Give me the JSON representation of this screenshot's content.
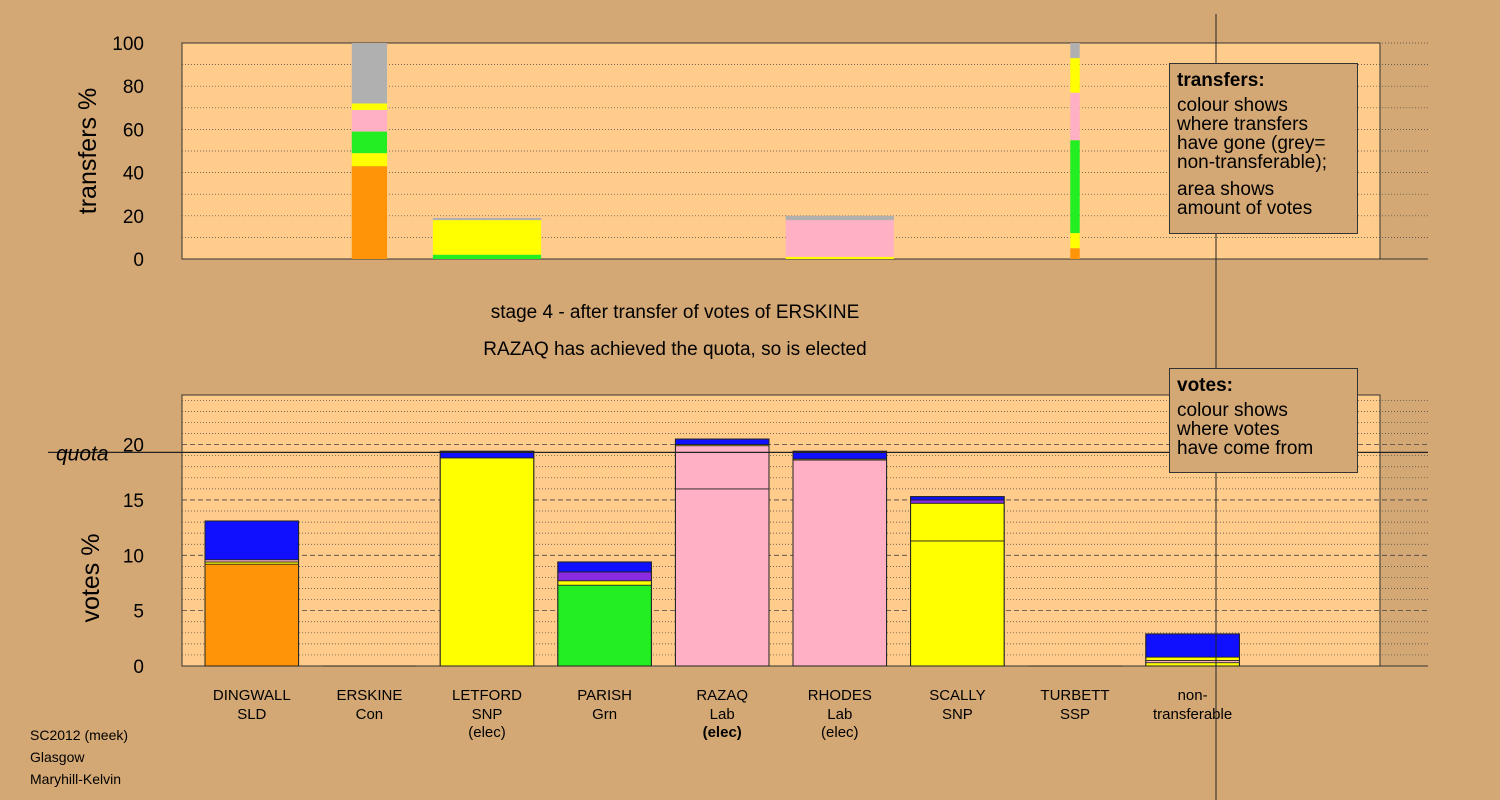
{
  "stage_title": "stage 4 - after transfer of votes of ERSKINE",
  "stage_subtitle": "RAZAQ has achieved the quota, so is elected",
  "footer": [
    "SC2012 (meek)",
    "Glasgow",
    "Maryhill-Kelvin"
  ],
  "transfers_box": {
    "title": "transfers:",
    "lines": [
      "colour shows",
      "where transfers",
      "have gone (grey=",
      "non-transferable);"
    ],
    "lines2": [
      "area shows",
      "amount of votes"
    ]
  },
  "votes_box": {
    "title": "votes:",
    "lines": [
      "colour shows",
      "where votes",
      "have come from"
    ]
  },
  "colors": {
    "SLD": "#ff9408",
    "Con": "#ffff00",
    "SNP": "#ffff00",
    "Grn": "#22ee22",
    "Lab": "#ffb0c4",
    "SSP": "#ff2020",
    "blue": "#1010ff",
    "purple": "#8a2be2",
    "grey": "#b0b0b0",
    "plot_bg": "#ffcc8c"
  },
  "chart_data": [
    {
      "type": "bar",
      "ylabel": "transfers %",
      "ylim": [
        0,
        100
      ],
      "yticks": [
        0,
        20,
        40,
        60,
        80,
        100
      ],
      "bars": [
        {
          "center": 1.5,
          "width": 0.3,
          "segments": [
            {
              "color": "SLD",
              "value": 43
            },
            {
              "color": "SNP",
              "value": 6
            },
            {
              "color": "Grn",
              "value": 10
            },
            {
              "color": "Lab",
              "value": 10
            },
            {
              "color": "SNP",
              "value": 3
            },
            {
              "color": "grey",
              "value": 28
            }
          ]
        },
        {
          "center": 2.5,
          "width": 0.92,
          "segments": [
            {
              "color": "Grn",
              "value": 2
            },
            {
              "color": "SNP",
              "value": 16
            },
            {
              "color": "grey",
              "value": 1
            }
          ]
        },
        {
          "center": 5.5,
          "width": 0.92,
          "segments": [
            {
              "color": "SNP",
              "value": 1
            },
            {
              "color": "Lab",
              "value": 17
            },
            {
              "color": "grey",
              "value": 2
            }
          ]
        },
        {
          "center": 7.5,
          "width": 0.08,
          "segments": [
            {
              "color": "SLD",
              "value": 5
            },
            {
              "color": "SNP",
              "value": 7
            },
            {
              "color": "Grn",
              "value": 43
            },
            {
              "color": "Lab",
              "value": 22
            },
            {
              "color": "SNP",
              "value": 16
            },
            {
              "color": "grey",
              "value": 7
            }
          ]
        }
      ]
    },
    {
      "type": "bar",
      "ylabel": "votes %",
      "ylim": [
        0,
        24.6
      ],
      "yticks": [
        0,
        5,
        10,
        15,
        20
      ],
      "quota": 19.3,
      "quota_label": "quota",
      "categories": [
        {
          "name": "DINGWALL",
          "party": "SLD",
          "status": ""
        },
        {
          "name": "ERSKINE",
          "party": "Con",
          "status": ""
        },
        {
          "name": "LETFORD",
          "party": "SNP",
          "status": "(elec)"
        },
        {
          "name": "PARISH",
          "party": "Grn",
          "status": ""
        },
        {
          "name": "RAZAQ",
          "party": "Lab",
          "status": "(elec)"
        },
        {
          "name": "RHODES",
          "party": "Lab",
          "status": "(elec)"
        },
        {
          "name": "SCALLY",
          "party": "SNP",
          "status": ""
        },
        {
          "name": "TURBETT",
          "party": "SSP",
          "status": ""
        },
        {
          "name": "non-",
          "party": "transferable",
          "status": ""
        }
      ],
      "bars": [
        {
          "segments": [
            {
              "color": "SLD",
              "value": 9.2
            },
            {
              "color": "SNP",
              "value": 0.2
            },
            {
              "color": "Lab",
              "value": 0.2
            },
            {
              "color": "blue",
              "value": 3.5
            }
          ]
        },
        {
          "segments": []
        },
        {
          "segments": [
            {
              "color": "SNP",
              "value": 18.8
            },
            {
              "color": "blue",
              "value": 0.6
            }
          ]
        },
        {
          "segments": [
            {
              "color": "Grn",
              "value": 7.3
            },
            {
              "color": "SNP",
              "value": 0.4
            },
            {
              "color": "purple",
              "value": 0.8
            },
            {
              "color": "blue",
              "value": 0.9
            }
          ]
        },
        {
          "segments": [
            {
              "color": "Lab",
              "value": 16.0
            },
            {
              "color": "Lab",
              "value": 3.9
            },
            {
              "color": "SNP",
              "value": 0.1
            },
            {
              "color": "blue",
              "value": 0.5
            }
          ]
        },
        {
          "segments": [
            {
              "color": "Lab",
              "value": 18.6
            },
            {
              "color": "SNP",
              "value": 0.1
            },
            {
              "color": "blue",
              "value": 0.7
            }
          ]
        },
        {
          "segments": [
            {
              "color": "SNP",
              "value": 11.3
            },
            {
              "color": "SNP",
              "value": 3.4
            },
            {
              "color": "purple",
              "value": 0.3
            },
            {
              "color": "blue",
              "value": 0.3
            }
          ]
        },
        {
          "segments": []
        },
        {
          "segments": [
            {
              "color": "SNP",
              "value": 0.3
            },
            {
              "color": "Lab",
              "value": 0.2
            },
            {
              "color": "SNP",
              "value": 0.3
            },
            {
              "color": "blue",
              "value": 2.1
            }
          ]
        }
      ]
    }
  ]
}
